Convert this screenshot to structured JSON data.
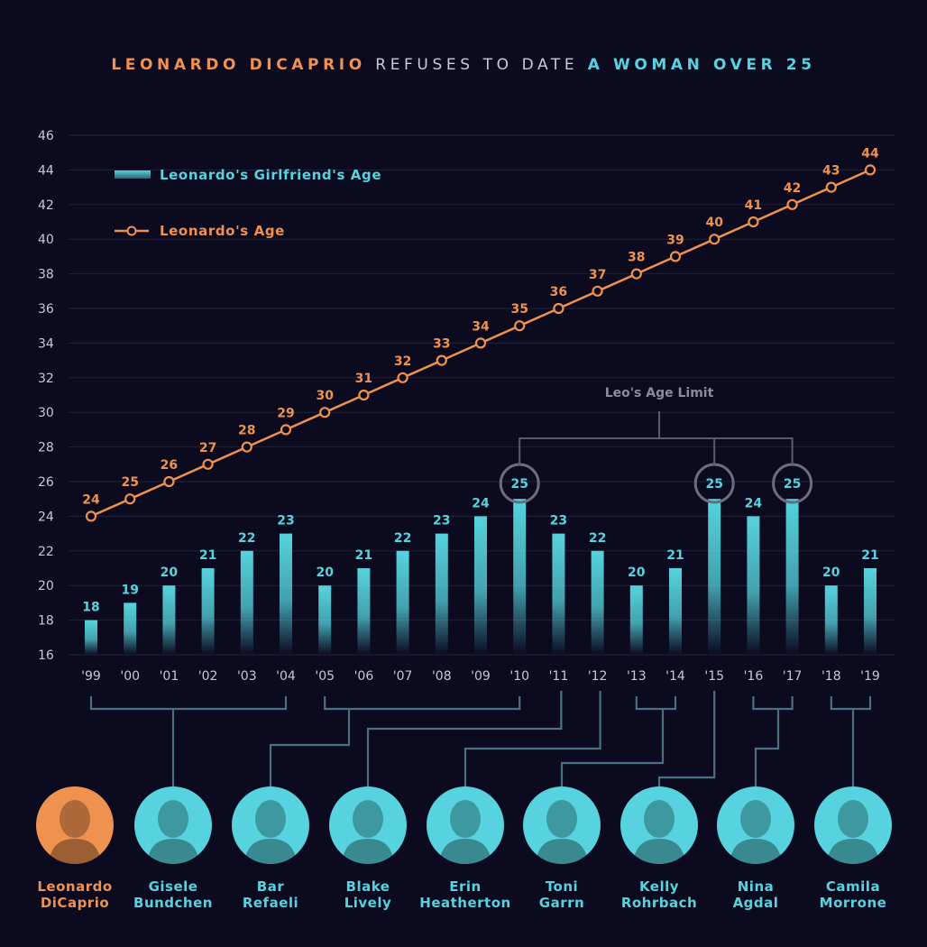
{
  "title": {
    "part1": "LEONARDO DICAPRIO",
    "part2": "REFUSES TO DATE",
    "part3": "A WOMAN OVER 25"
  },
  "colors": {
    "background": "#0b0a1f",
    "orange": "#f0924f",
    "teal": "#56d3de",
    "grid": "#232338",
    "bracket": "#4c6f82",
    "limit": "#8a8c9c"
  },
  "annotation": "Leo's Age Limit",
  "chart_data": {
    "type": "bar",
    "categories": [
      "'99",
      "'00",
      "'01",
      "'02",
      "'03",
      "'04",
      "'05",
      "'06",
      "'07",
      "'08",
      "'09",
      "'10",
      "'11",
      "'12",
      "'13",
      "'14",
      "'15",
      "'16",
      "'17",
      "'18",
      "'19"
    ],
    "series": [
      {
        "name": "Leonardo's Girlfriend's Age",
        "type": "bar",
        "color": "#56d3de",
        "values": [
          18,
          19,
          20,
          21,
          22,
          23,
          20,
          21,
          22,
          23,
          24,
          25,
          23,
          22,
          20,
          21,
          25,
          24,
          25,
          20,
          21
        ]
      },
      {
        "name": "Leonardo's Age",
        "type": "line",
        "color": "#f0924f",
        "values": [
          24,
          25,
          26,
          27,
          28,
          29,
          30,
          31,
          32,
          33,
          34,
          35,
          36,
          37,
          38,
          39,
          40,
          41,
          42,
          43,
          44
        ]
      }
    ],
    "yticks": [
      16,
      18,
      20,
      22,
      24,
      26,
      28,
      30,
      32,
      34,
      36,
      38,
      40,
      42,
      44,
      46
    ],
    "ylim": [
      16,
      46
    ],
    "legend": "top-left",
    "grid": true,
    "highlighted": [
      "'10",
      "'15",
      "'17"
    ]
  },
  "people": [
    {
      "name": "Leonardo\nDiCaprio",
      "years": [],
      "color": "orange"
    },
    {
      "name": "Gisele\nBundchen",
      "years": [
        "'99",
        "'04"
      ],
      "color": "teal"
    },
    {
      "name": "Bar\nRefaeli",
      "years": [
        "'05",
        "'10"
      ],
      "color": "teal"
    },
    {
      "name": "Blake\nLively",
      "years": [
        "'11"
      ],
      "color": "teal"
    },
    {
      "name": "Erin\nHeatherton",
      "years": [
        "'11"
      ],
      "color": "teal"
    },
    {
      "name": "Toni\nGarrn",
      "years": [
        "'12"
      ],
      "color": "teal"
    },
    {
      "name": "Kelly\nRohrbach",
      "years": [
        "'13",
        "'14"
      ],
      "color": "teal"
    },
    {
      "name": "Nina\nAgdal",
      "years": [
        "'15"
      ],
      "color": "teal"
    },
    {
      "name": "Camila\nMorrone",
      "years": [
        "'16",
        "'17"
      ],
      "color": "teal"
    }
  ],
  "camila_years": [
    "'18",
    "'19"
  ]
}
